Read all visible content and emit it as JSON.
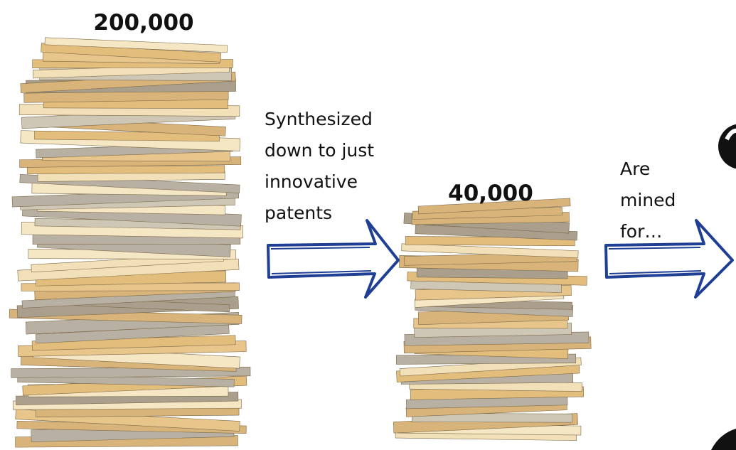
{
  "stacks": [
    {
      "count": "200,000"
    },
    {
      "count": "40,000"
    }
  ],
  "steps": [
    {
      "lines": [
        "Synthesized",
        "down to just",
        "innovative",
        "patents"
      ]
    },
    {
      "lines": [
        "Are",
        "mined",
        "for…"
      ]
    }
  ]
}
